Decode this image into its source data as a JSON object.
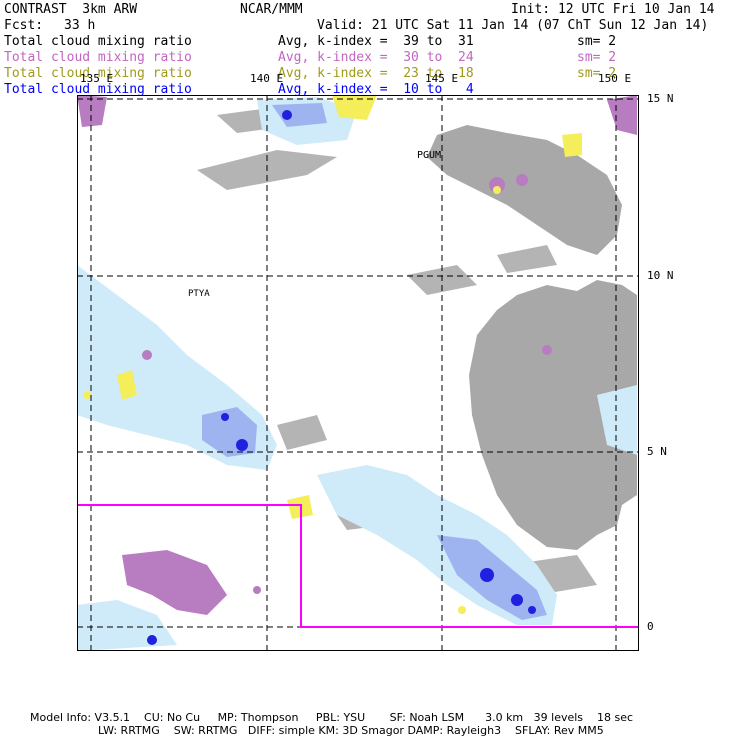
{
  "header": {
    "model": "CONTRAST  3km ARW",
    "org": "NCAR/MMM",
    "init": "Init: 12 UTC Fri 10 Jan 14",
    "fcst_label": "Fcst:",
    "fcst_value": "33 h",
    "valid": "Valid: 21 UTC Sat 11 Jan 14 (07 ChT Sun 12 Jan 14)"
  },
  "fields": [
    {
      "name": "Total cloud mixing ratio",
      "avg": "Avg, k-index =  39 to  31",
      "sm": "sm= 2",
      "color": "#000000"
    },
    {
      "name": "Total cloud mixing ratio",
      "avg": "Avg, k-index =  30 to  24",
      "sm": "sm= 2",
      "color": "#c266c2"
    },
    {
      "name": "Total cloud mixing ratio",
      "avg": "Avg, k-index =  23 to  18",
      "sm": "sm= 2",
      "color": "#a09a1a"
    },
    {
      "name": "Total cloud mixing ratio",
      "avg": "Avg, k-index =  10 to   4",
      "sm": "",
      "color": "#0000ff"
    }
  ],
  "map": {
    "lon_labels": [
      "135 E",
      "140 E",
      "145 E",
      "150 E"
    ],
    "lat_labels": [
      "15 N",
      "10 N",
      "5 N",
      "0"
    ],
    "places": [
      "PGUM",
      "PTYA"
    ],
    "colors": {
      "gray": "#a8a8a8",
      "purple": "#b87cc0",
      "yellow": "#f4ee5a",
      "lightblue": "#cfeaf8",
      "midblue": "#9eb4f0",
      "blue": "#2020e0",
      "magenta_box": "#ff00ff"
    }
  },
  "footer": {
    "line1": "Model Info: V3.5.1    CU: No Cu     MP: Thompson     PBL: YSU       SF: Noah LSM      3.0 km   39 levels    18 sec",
    "line2": "LW: RRTMG    SW: RRTMG   DIFF: simple KM: 3D Smagor DAMP: Rayleigh3    SFLAY: Rev MM5"
  }
}
